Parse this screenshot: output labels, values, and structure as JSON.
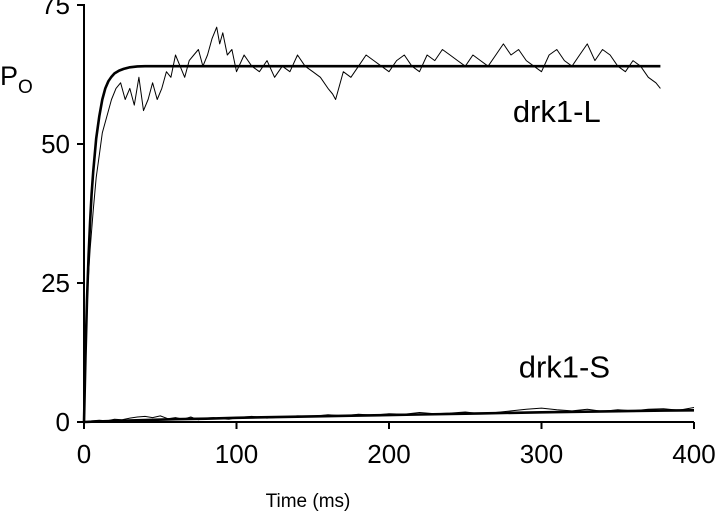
{
  "chart_data": {
    "type": "line",
    "title": "",
    "xlabel": "Time (ms)",
    "ylabel": {
      "main": "P",
      "sub": "O"
    },
    "xlim": [
      0,
      400
    ],
    "ylim": [
      0,
      75
    ],
    "x_ticks": [
      0,
      100,
      200,
      300,
      400
    ],
    "x_tick_labels": [
      "0",
      "100",
      "200",
      "300",
      "400"
    ],
    "y_ticks": [
      0,
      25,
      50,
      75
    ],
    "y_tick_labels": [
      "0",
      "25",
      "50",
      "75"
    ],
    "grid": false,
    "legend": "none",
    "series": [
      {
        "name": "drk1-L",
        "role": "trace",
        "x": [
          0,
          1,
          2,
          4,
          6,
          8,
          10,
          12,
          15,
          18,
          21,
          24,
          27,
          30,
          33,
          36,
          39,
          42,
          45,
          48,
          51,
          54,
          57,
          60,
          63,
          66,
          69,
          72,
          75,
          78,
          81,
          84,
          87,
          89,
          91,
          94,
          97,
          100,
          105,
          110,
          115,
          120,
          125,
          130,
          135,
          140,
          145,
          150,
          155,
          160,
          163,
          165,
          167,
          170,
          175,
          180,
          185,
          190,
          195,
          200,
          205,
          210,
          215,
          220,
          225,
          230,
          235,
          240,
          245,
          250,
          255,
          260,
          265,
          270,
          275,
          280,
          285,
          290,
          295,
          300,
          305,
          310,
          315,
          320,
          325,
          330,
          335,
          340,
          345,
          350,
          355,
          360,
          365,
          370,
          375,
          378
        ],
        "y": [
          0,
          10,
          22,
          31,
          38,
          44,
          48,
          52,
          55,
          58,
          60,
          61,
          58,
          60,
          57,
          62,
          56,
          58,
          61,
          58,
          60,
          63,
          62,
          66,
          64,
          62,
          65,
          66,
          67,
          64,
          66,
          69,
          71,
          68,
          70,
          66,
          67,
          63,
          66,
          64,
          63,
          65,
          62,
          64,
          63,
          66,
          64,
          63,
          62,
          60,
          59,
          58,
          60,
          63,
          62,
          64,
          66,
          65,
          64,
          63,
          65,
          66,
          64,
          63,
          66,
          65,
          67,
          66,
          65,
          64,
          66,
          65,
          64,
          66,
          68,
          66,
          67,
          65,
          64,
          63,
          66,
          67,
          65,
          64,
          66,
          68,
          65,
          67,
          66,
          64,
          63,
          65,
          64,
          62,
          61,
          60
        ]
      },
      {
        "name": "drk1-L",
        "role": "fit",
        "x": [
          0,
          1,
          2,
          3,
          4,
          5,
          6,
          8,
          10,
          12,
          14,
          16,
          18,
          20,
          23,
          26,
          30,
          35,
          40,
          50,
          60,
          80,
          120,
          200,
          300,
          378
        ],
        "y": [
          0,
          12,
          22,
          30,
          36,
          41,
          45,
          51,
          55,
          58,
          60,
          61.3,
          62.1,
          62.7,
          63.2,
          63.5,
          63.8,
          63.95,
          64,
          64,
          64,
          64,
          64,
          64,
          64,
          64
        ]
      },
      {
        "name": "drk1-S",
        "role": "trace",
        "x": [
          0,
          5,
          10,
          15,
          20,
          25,
          30,
          35,
          40,
          45,
          50,
          55,
          60,
          65,
          70,
          75,
          80,
          85,
          90,
          95,
          100,
          110,
          120,
          130,
          140,
          150,
          160,
          170,
          180,
          190,
          200,
          210,
          220,
          230,
          240,
          250,
          260,
          270,
          280,
          290,
          300,
          310,
          320,
          330,
          340,
          350,
          360,
          370,
          380,
          390,
          400
        ],
        "y": [
          0,
          0.2,
          0.3,
          0.2,
          0.5,
          0.4,
          0.7,
          0.9,
          1.0,
          0.8,
          1.1,
          0.6,
          0.8,
          0.5,
          0.9,
          0.4,
          0.7,
          0.8,
          0.6,
          0.5,
          0.8,
          1.0,
          0.7,
          0.9,
          1.1,
          1.0,
          1.3,
          1.1,
          1.4,
          1.2,
          1.5,
          1.4,
          1.7,
          1.5,
          1.6,
          1.8,
          1.5,
          1.7,
          2.0,
          2.3,
          2.5,
          2.2,
          2.0,
          2.3,
          1.9,
          2.2,
          2.0,
          2.3,
          2.4,
          2.1,
          2.6
        ]
      },
      {
        "name": "drk1-S",
        "role": "fit",
        "x": [
          0,
          10,
          20,
          40,
          60,
          80,
          100,
          140,
          180,
          220,
          260,
          300,
          340,
          380,
          400
        ],
        "y": [
          0,
          0.1,
          0.2,
          0.35,
          0.5,
          0.6,
          0.75,
          0.95,
          1.15,
          1.35,
          1.55,
          1.75,
          1.9,
          2.05,
          2.1
        ]
      }
    ],
    "annotations": [
      {
        "text": "drk1-L",
        "x": 310,
        "y": 54
      },
      {
        "text": "drk1-S",
        "x": 315,
        "y": 8
      }
    ]
  }
}
